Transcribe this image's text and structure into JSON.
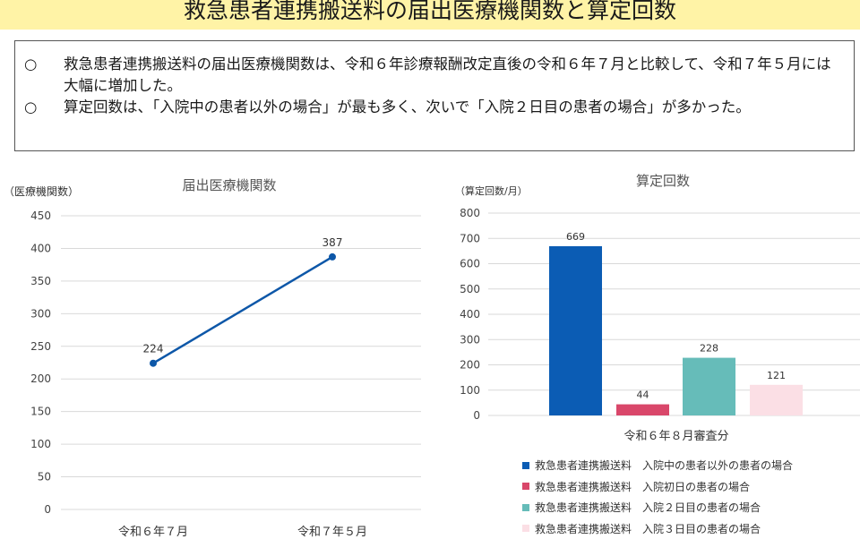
{
  "header": {
    "title": "救急患者連携搬送料の届出医療機関数と算定回数"
  },
  "summary": {
    "bullets": [
      {
        "mark": "○",
        "text": "救急患者連携搬送料の届出医療機関数は、令和６年診療報酬改定直後の令和６年７月と比較して、令和７年５月には大幅に増加した。"
      },
      {
        "mark": "○",
        "text": "算定回数は、「入院中の患者以外の場合」が最も多く、次いで「入院２日目の患者の場合」が多かった。"
      }
    ]
  },
  "chart_data": [
    {
      "type": "line",
      "title": "届出医療機関数",
      "ylabel": "（医療機関数）",
      "xlabel": "",
      "categories": [
        "令和６年７月",
        "令和７年５月"
      ],
      "series": [
        {
          "name": "",
          "values": [
            224,
            387
          ],
          "color": "#0d57a8"
        }
      ],
      "ylim": [
        0,
        450
      ],
      "yticks": [
        0,
        50,
        100,
        150,
        200,
        250,
        300,
        350,
        400,
        450
      ],
      "grid": true,
      "data_labels": true
    },
    {
      "type": "bar",
      "title": "算定回数",
      "ylabel": "（算定回数/月）",
      "xlabel": "令和６年８月審査分",
      "categories": [
        "令和６年８月審査分"
      ],
      "series": [
        {
          "name": "救急患者連携搬送料　入院中の患者以外の患者の場合",
          "values": [
            669
          ],
          "color": "#0b5cb4"
        },
        {
          "name": "救急患者連携搬送料　入院初日の患者の場合",
          "values": [
            44
          ],
          "color": "#d9476a"
        },
        {
          "name": "救急患者連携搬送料　入院２日目の患者の場合",
          "values": [
            228
          ],
          "color": "#66bcb9"
        },
        {
          "name": "救急患者連携搬送料　入院３日目の患者の場合",
          "values": [
            121
          ],
          "color": "#fbdfe5"
        }
      ],
      "ylim": [
        0,
        800
      ],
      "yticks": [
        0,
        100,
        200,
        300,
        400,
        500,
        600,
        700,
        800
      ],
      "grid": true,
      "legend": "bottom",
      "data_labels": true
    }
  ]
}
